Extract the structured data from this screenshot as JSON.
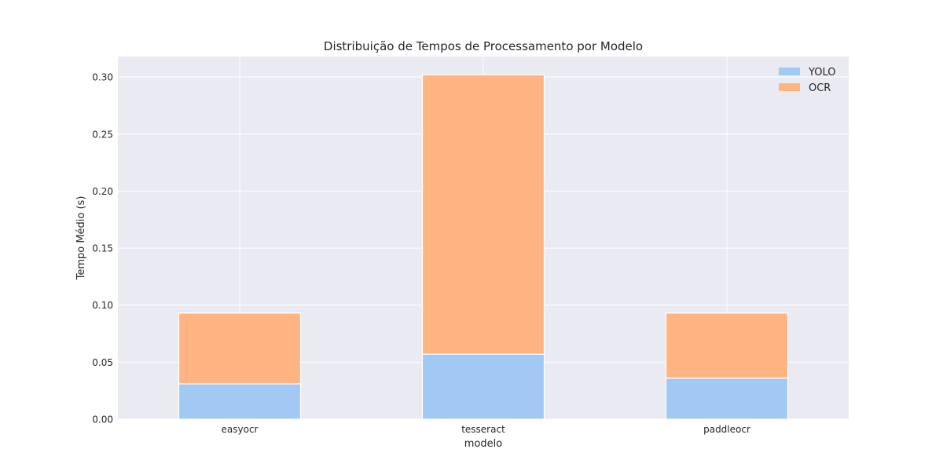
{
  "chart_data": {
    "type": "bar",
    "stacked": true,
    "title": "Distribuição de Tempos de Processamento por Modelo",
    "xlabel": "modelo",
    "ylabel": "Tempo Médio (s)",
    "categories": [
      "easyocr",
      "tesseract",
      "paddleocr"
    ],
    "series": [
      {
        "name": "YOLO",
        "color": "#a1c9f4",
        "values": [
          0.031,
          0.057,
          0.036
        ]
      },
      {
        "name": "OCR",
        "color": "#ffb482",
        "values": [
          0.062,
          0.245,
          0.057
        ]
      }
    ],
    "ylim": [
      0,
      0.318
    ],
    "yticks": [
      "0.00",
      "0.05",
      "0.10",
      "0.15",
      "0.20",
      "0.25",
      "0.30"
    ],
    "grid": true,
    "legend_position": "top-right",
    "background": "#eaeaf2"
  }
}
